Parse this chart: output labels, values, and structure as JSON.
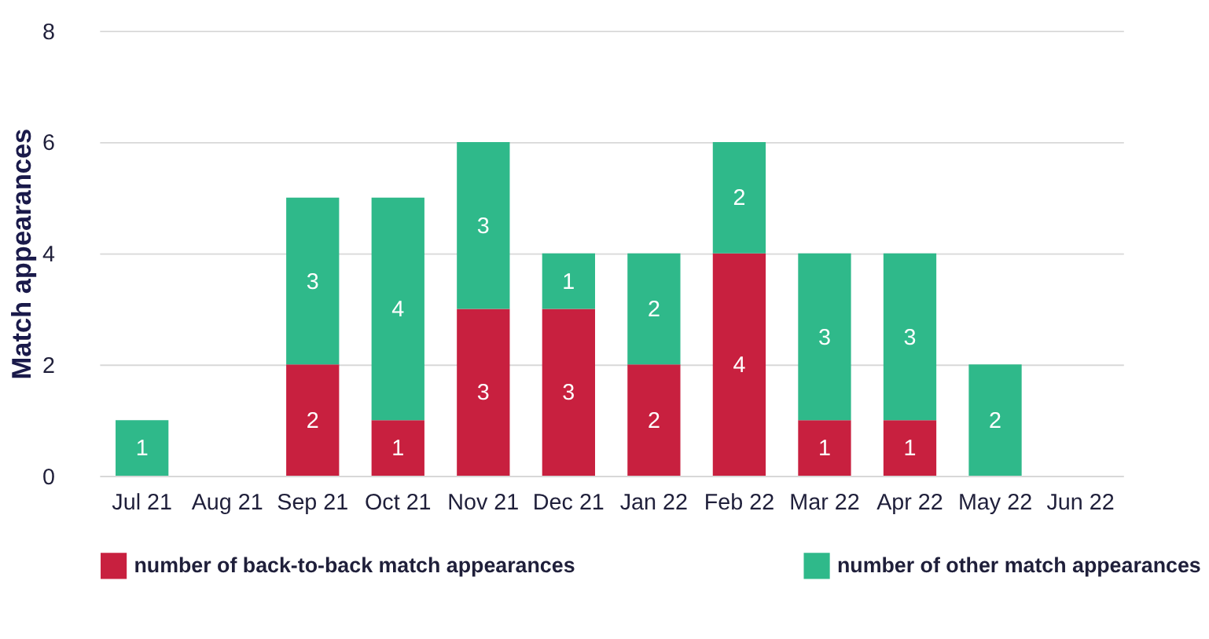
{
  "chart_data": {
    "type": "bar",
    "stacked": true,
    "ylabel": "Match appearances",
    "categories": [
      "Jul 21",
      "Aug 21",
      "Sep 21",
      "Oct 21",
      "Nov 21",
      "Dec 21",
      "Jan 22",
      "Feb 22",
      "Mar 22",
      "Apr 22",
      "May 22",
      "Jun 22"
    ],
    "series": [
      {
        "name": "number of back-to-back match appearances",
        "color": "#c8203f",
        "values": [
          0,
          0,
          2,
          1,
          3,
          3,
          2,
          4,
          1,
          1,
          0,
          0
        ],
        "value_labels": [
          null,
          null,
          "2",
          "1",
          "3",
          "3",
          "2",
          "4",
          "1",
          "1",
          null,
          null
        ]
      },
      {
        "name": "number of other match appearances",
        "color": "#2fb98a",
        "values": [
          1,
          0,
          3,
          4,
          3,
          1,
          2,
          2,
          3,
          3,
          2,
          0
        ],
        "value_labels": [
          "1",
          null,
          "3",
          "4",
          "3",
          "1",
          "2",
          "2",
          "3",
          "3",
          "2",
          null
        ]
      }
    ],
    "ylim": [
      0,
      8
    ],
    "yticks": [
      0,
      2,
      4,
      6,
      8
    ],
    "grid": "y",
    "legend": "bottom"
  }
}
